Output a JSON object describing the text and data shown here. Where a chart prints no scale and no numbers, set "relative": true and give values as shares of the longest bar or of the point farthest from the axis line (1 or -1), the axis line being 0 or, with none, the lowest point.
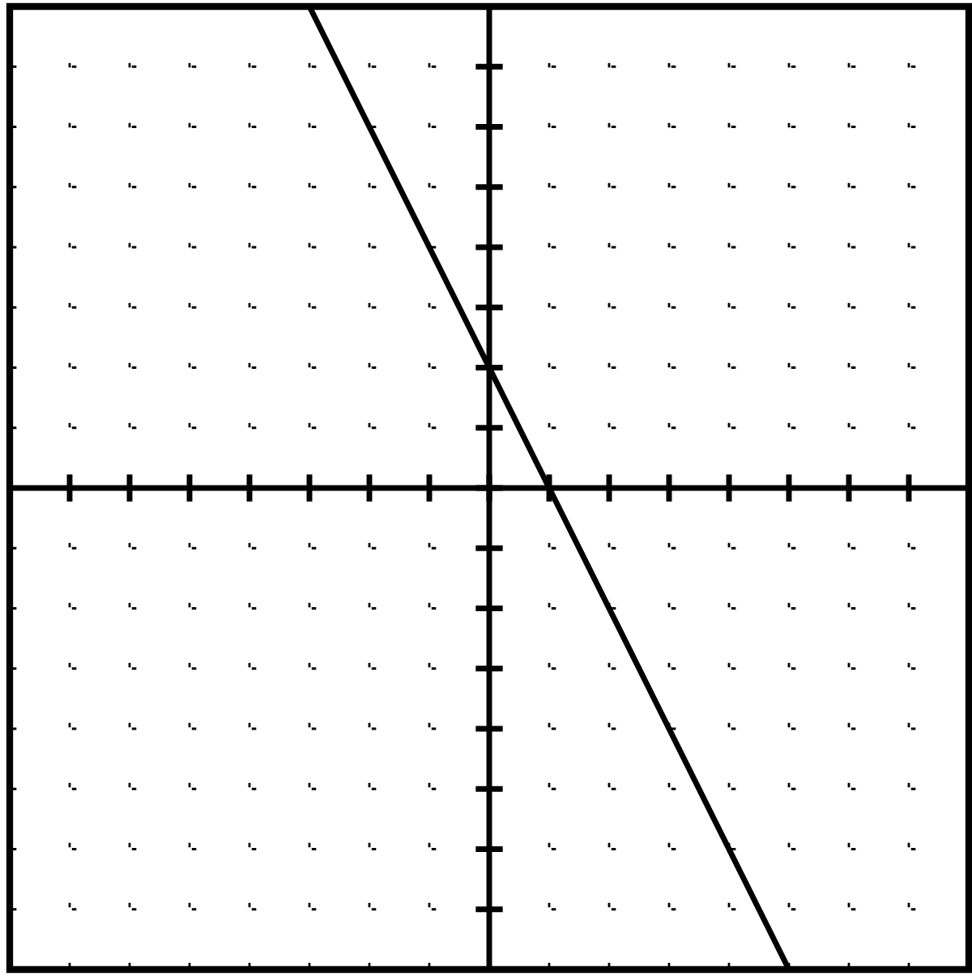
{
  "chart_data": {
    "type": "line",
    "relative": true,
    "categories": [
      null,
      null,
      null,
      null,
      null,
      null,
      null,
      null,
      null,
      null,
      null,
      null,
      null,
      null,
      null,
      null,
      null
    ],
    "series": [
      {
        "color": "#000000",
        "values": [
          null,
          null,
          null,
          null,
          null,
          1,
          0.75,
          0.5,
          0.25,
          0,
          -0.25,
          -0.5,
          -0.75,
          -1,
          null,
          null,
          null
        ]
      }
    ],
    "grid": true,
    "marker": "none",
    "line_style": "solid"
  }
}
